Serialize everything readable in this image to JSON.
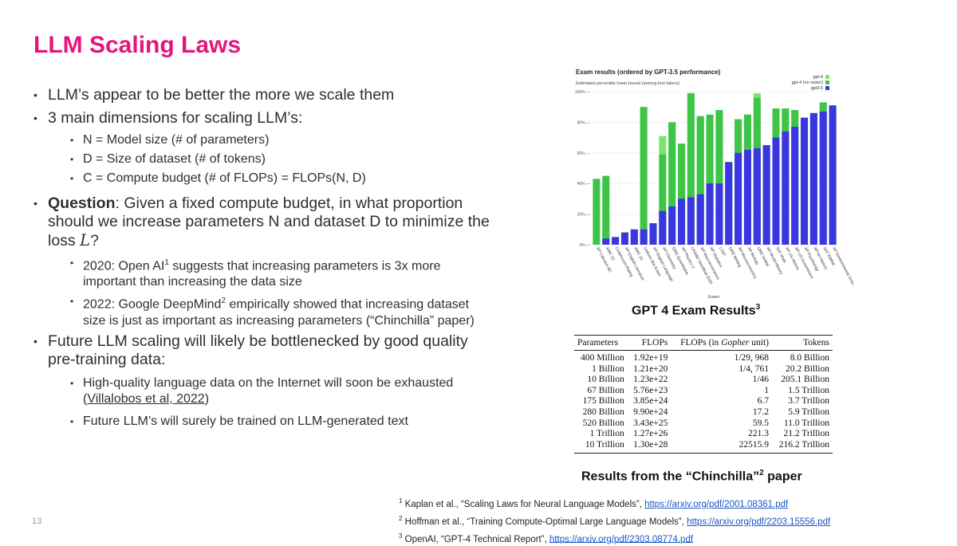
{
  "slide": {
    "title": "LLM Scaling Laws",
    "page_number": "13",
    "accent_color": "#e5157f"
  },
  "bullets": {
    "b1": "LLM’s appear to be better the more we scale them",
    "b2": "3 main dimensions for scaling LLM’s:",
    "b2_sub": [
      "N = Model size (# of parameters)",
      "D = Size of dataset (# of tokens)",
      "C = Compute budget (# of FLOPs) = FLOPs(N, D)"
    ],
    "b3_bold": "Question",
    "b3_text": ": Given a fixed compute budget, in what proportion should we increase parameters N and dataset D to minimize the loss ",
    "b3_loss": "L",
    "b3_end": "?",
    "b3_sub1_pre": "2020: Open AI",
    "b3_sub1_sup": "1",
    "b3_sub1_post": " suggests that increasing parameters is 3x more important than increasing the data size",
    "b3_sub2_pre": "2022: Google DeepMind",
    "b3_sub2_sup": "2",
    "b3_sub2_post": " empirically showed that increasing dataset size is just as important as increasing parameters (“Chinchilla” paper)",
    "b4": "Future LLM scaling will likely be bottlenecked by good quality pre-training data:",
    "b4_sub1_pre": "High-quality language data on the Internet will soon be exhausted (",
    "b4_sub1_link": "Villalobos et al, 2022",
    "b4_sub1_post": ")",
    "b4_sub2": "Future LLM’s will surely be trained on LLM-generated text"
  },
  "captions": {
    "gpt4": "GPT 4 Exam Results",
    "gpt4_sup": "3",
    "chin_pre": "Results from the “Chinchilla”",
    "chin_sup": "2",
    "chin_post": " paper"
  },
  "chart_data": {
    "type": "bar",
    "title": "Exam results (ordered by GPT-3.5 performance)",
    "subtitle": "Estimated percentile lower bound (among test takers)",
    "xlabel": "Exam",
    "ylabel": "",
    "ylim": [
      0,
      100
    ],
    "yticks": [
      "0% —",
      "20% —",
      "40% —",
      "60% —",
      "80% —",
      "100% —"
    ],
    "legend_position": "top-right",
    "colors": {
      "gpt-4": "#7de36a",
      "gpt-4 (no vision)": "#3ec447",
      "gpt3.5": "#3a36e0"
    },
    "categories": [
      "AP Calculus BC",
      "AMC 12",
      "Codeforces Rating",
      "AP English Literature",
      "AMC 10",
      "Uniform Bar Exam",
      "AP English Language",
      "AP Chemistry",
      "GRE Quantitative",
      "AP Physics 2",
      "USABO Semifinal 2020",
      "AP Macroeconomics",
      "AP Statistics",
      "LSAT",
      "GRE Writing",
      "AP Microeconomics",
      "AP Biology",
      "GRE Verbal",
      "AP World History",
      "SAT Math",
      "AP US History",
      "AP US Government",
      "AP Psychology",
      "AP Art History",
      "SAT EBRW",
      "AP Environmental Science"
    ],
    "series": [
      {
        "name": "gpt3.5",
        "values": [
          0,
          4,
          5,
          8,
          10,
          10,
          14,
          22,
          25,
          30,
          31,
          33,
          40,
          40,
          54,
          60,
          62,
          63,
          65,
          70,
          74,
          77,
          83,
          86,
          87,
          91
        ]
      },
      {
        "name": "gpt-4 (no vision)",
        "values": [
          43,
          45,
          5,
          8,
          6,
          90,
          14,
          59,
          80,
          66,
          99,
          84,
          85,
          88,
          54,
          82,
          85,
          96,
          65,
          89,
          89,
          88,
          83,
          86,
          93,
          91
        ]
      },
      {
        "name": "gpt-4",
        "values": [
          43,
          19,
          5,
          8,
          10,
          90,
          14,
          71,
          80,
          66,
          99,
          84,
          85,
          88,
          54,
          82,
          85,
          99,
          65,
          89,
          89,
          88,
          83,
          86,
          93,
          91
        ]
      }
    ]
  },
  "table": {
    "headers": [
      "Parameters",
      "FLOPs",
      "FLOPs (in ",
      "Gopher",
      " unit)",
      "Tokens"
    ],
    "rows": [
      [
        "400 Million",
        "1.92e+19",
        "1/29, 968",
        "8.0 Billion"
      ],
      [
        "1 Billion",
        "1.21e+20",
        "1/4, 761",
        "20.2 Billion"
      ],
      [
        "10 Billion",
        "1.23e+22",
        "1/46",
        "205.1 Billion"
      ],
      [
        "67 Billion",
        "5.76e+23",
        "1",
        "1.5 Trillion"
      ],
      [
        "175 Billion",
        "3.85e+24",
        "6.7",
        "3.7 Trillion"
      ],
      [
        "280 Billion",
        "9.90e+24",
        "17.2",
        "5.9 Trillion"
      ],
      [
        "520 Billion",
        "3.43e+25",
        "59.5",
        "11.0 Trillion"
      ],
      [
        "1 Trillion",
        "1.27e+26",
        "221.3",
        "21.2 Trillion"
      ],
      [
        "10 Trillion",
        "1.30e+28",
        "22515.9",
        "216.2 Trillion"
      ]
    ]
  },
  "footnotes": [
    {
      "sup": "1",
      "text": " Kaplan et al., “Scaling Laws for Neural Language Models”, ",
      "link": "https://arxiv.org/pdf/2001.08361.pdf"
    },
    {
      "sup": "2",
      "text": " Hoffman et al., “Training Compute-Optimal Large Language Models”, ",
      "link": "https://arxiv.org/pdf/2203.15556.pdf"
    },
    {
      "sup": "3",
      "text": " OpenAI, “GPT-4 Technical Report”, ",
      "link": "https://arxiv.org/pdf/2303.08774.pdf"
    }
  ]
}
